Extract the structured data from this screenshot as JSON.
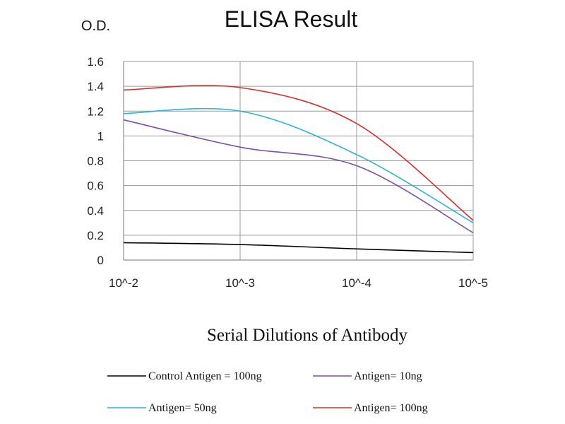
{
  "chart_data": {
    "type": "line",
    "title": "ELISA Result",
    "ylabel": "O.D.",
    "xlabel": "Serial Dilutions of Antibody",
    "categories": [
      "10^-2",
      "10^-3",
      "10^-4",
      "10^-5"
    ],
    "ylim": [
      0,
      1.6
    ],
    "yticks": [
      "0",
      "0.2",
      "0.4",
      "0.6",
      "0.8",
      "1",
      "1.2",
      "1.4",
      "1.6"
    ],
    "grid": true,
    "legend_position": "bottom",
    "series": [
      {
        "name": "Control Antigen = 100ng",
        "color": "#000000",
        "values": [
          0.14,
          0.125,
          0.09,
          0.06
        ]
      },
      {
        "name": "Antigen= 10ng",
        "color": "#7b4fa8",
        "values": [
          1.13,
          0.91,
          0.76,
          0.22
        ]
      },
      {
        "name": "Antigen= 50ng",
        "color": "#2bb5d0",
        "values": [
          1.18,
          1.2,
          0.85,
          0.3
        ]
      },
      {
        "name": "Antigen= 100ng",
        "color": "#d9302c",
        "values": [
          1.37,
          1.39,
          1.1,
          0.32
        ]
      }
    ]
  }
}
